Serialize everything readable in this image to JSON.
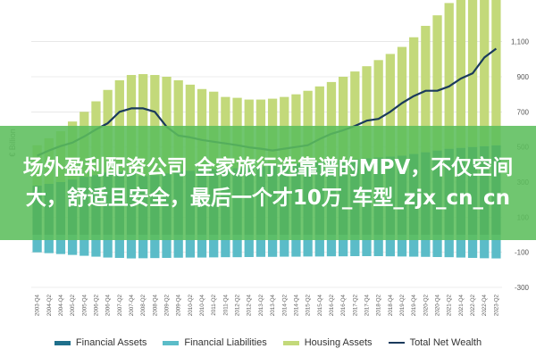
{
  "chart_data": {
    "type": "bar",
    "ylabel": "€ Billion",
    "ylim": [
      -300,
      1200
    ],
    "yticks": [
      1100,
      900,
      700,
      500,
      300,
      100,
      -100,
      -300
    ],
    "ytick_labels": [
      "1,100",
      "900",
      "700",
      "500",
      "300",
      "100",
      "-100",
      "-300"
    ],
    "grid": true,
    "legend_position": "bottom",
    "categories": [
      "2003-Q4",
      "2004-Q2",
      "2004-Q4",
      "2005-Q2",
      "2005-Q4",
      "2006-Q2",
      "2006-Q4",
      "2007-Q2",
      "2007-Q4",
      "2008-Q2",
      "2008-Q4",
      "2009-Q2",
      "2009-Q4",
      "2010-Q2",
      "2010-Q4",
      "2011-Q2",
      "2011-Q4",
      "2012-Q2",
      "2012-Q4",
      "2013-Q2",
      "2013-Q4",
      "2014-Q2",
      "2014-Q4",
      "2015-Q2",
      "2015-Q4",
      "2016-Q2",
      "2016-Q4",
      "2017-Q2",
      "2017-Q4",
      "2018-Q2",
      "2018-Q4",
      "2019-Q2",
      "2019-Q4",
      "2020-Q2",
      "2020-Q4",
      "2021-Q2",
      "2021-Q4",
      "2022-Q2",
      "2022-Q4",
      "2023-Q2"
    ],
    "series": [
      {
        "name": "Financial Assets",
        "color": "#1f6f8b",
        "values": [
          280,
          290,
          300,
          315,
          330,
          340,
          355,
          360,
          350,
          335,
          340,
          350,
          360,
          365,
          370,
          375,
          375,
          380,
          385,
          390,
          395,
          400,
          405,
          410,
          415,
          420,
          425,
          430,
          435,
          440,
          445,
          450,
          460,
          470,
          480,
          490,
          495,
          500,
          505,
          510
        ]
      },
      {
        "name": "Financial Liabilities",
        "color": "#5bbcc8",
        "values": [
          -100,
          -105,
          -110,
          -115,
          -120,
          -125,
          -130,
          -132,
          -135,
          -134,
          -133,
          -132,
          -131,
          -130,
          -130,
          -129,
          -128,
          -128,
          -127,
          -126,
          -126,
          -125,
          -125,
          -124,
          -124,
          -123,
          -123,
          -122,
          -122,
          -122,
          -123,
          -124,
          -125,
          -126,
          -127,
          -128,
          -130,
          -132,
          -134,
          -135
        ]
      },
      {
        "name": "Housing Assets",
        "color": "#c3d97a",
        "values": [
          230,
          260,
          290,
          330,
          370,
          420,
          470,
          520,
          560,
          580,
          570,
          550,
          520,
          490,
          460,
          440,
          410,
          400,
          385,
          380,
          380,
          385,
          395,
          410,
          430,
          450,
          475,
          500,
          525,
          555,
          585,
          620,
          665,
          720,
          770,
          830,
          900,
          960,
          1000,
          1010
        ]
      },
      {
        "name": "Total Net Wealth",
        "color": "#1a3a5c",
        "values": [
          450,
          480,
          505,
          525,
          560,
          600,
          635,
          700,
          720,
          720,
          700,
          615,
          565,
          555,
          540,
          530,
          520,
          510,
          498,
          490,
          480,
          490,
          500,
          510,
          545,
          575,
          595,
          620,
          650,
          660,
          700,
          750,
          790,
          820,
          820,
          845,
          890,
          920,
          1010,
          1060
        ]
      }
    ]
  },
  "overlay": {
    "text": "场外盈利配资公司 全家旅行选靠谱的MPV，不仅空间大，舒适且安全，最后一个才10万_车型_zjx_cn_cn"
  }
}
